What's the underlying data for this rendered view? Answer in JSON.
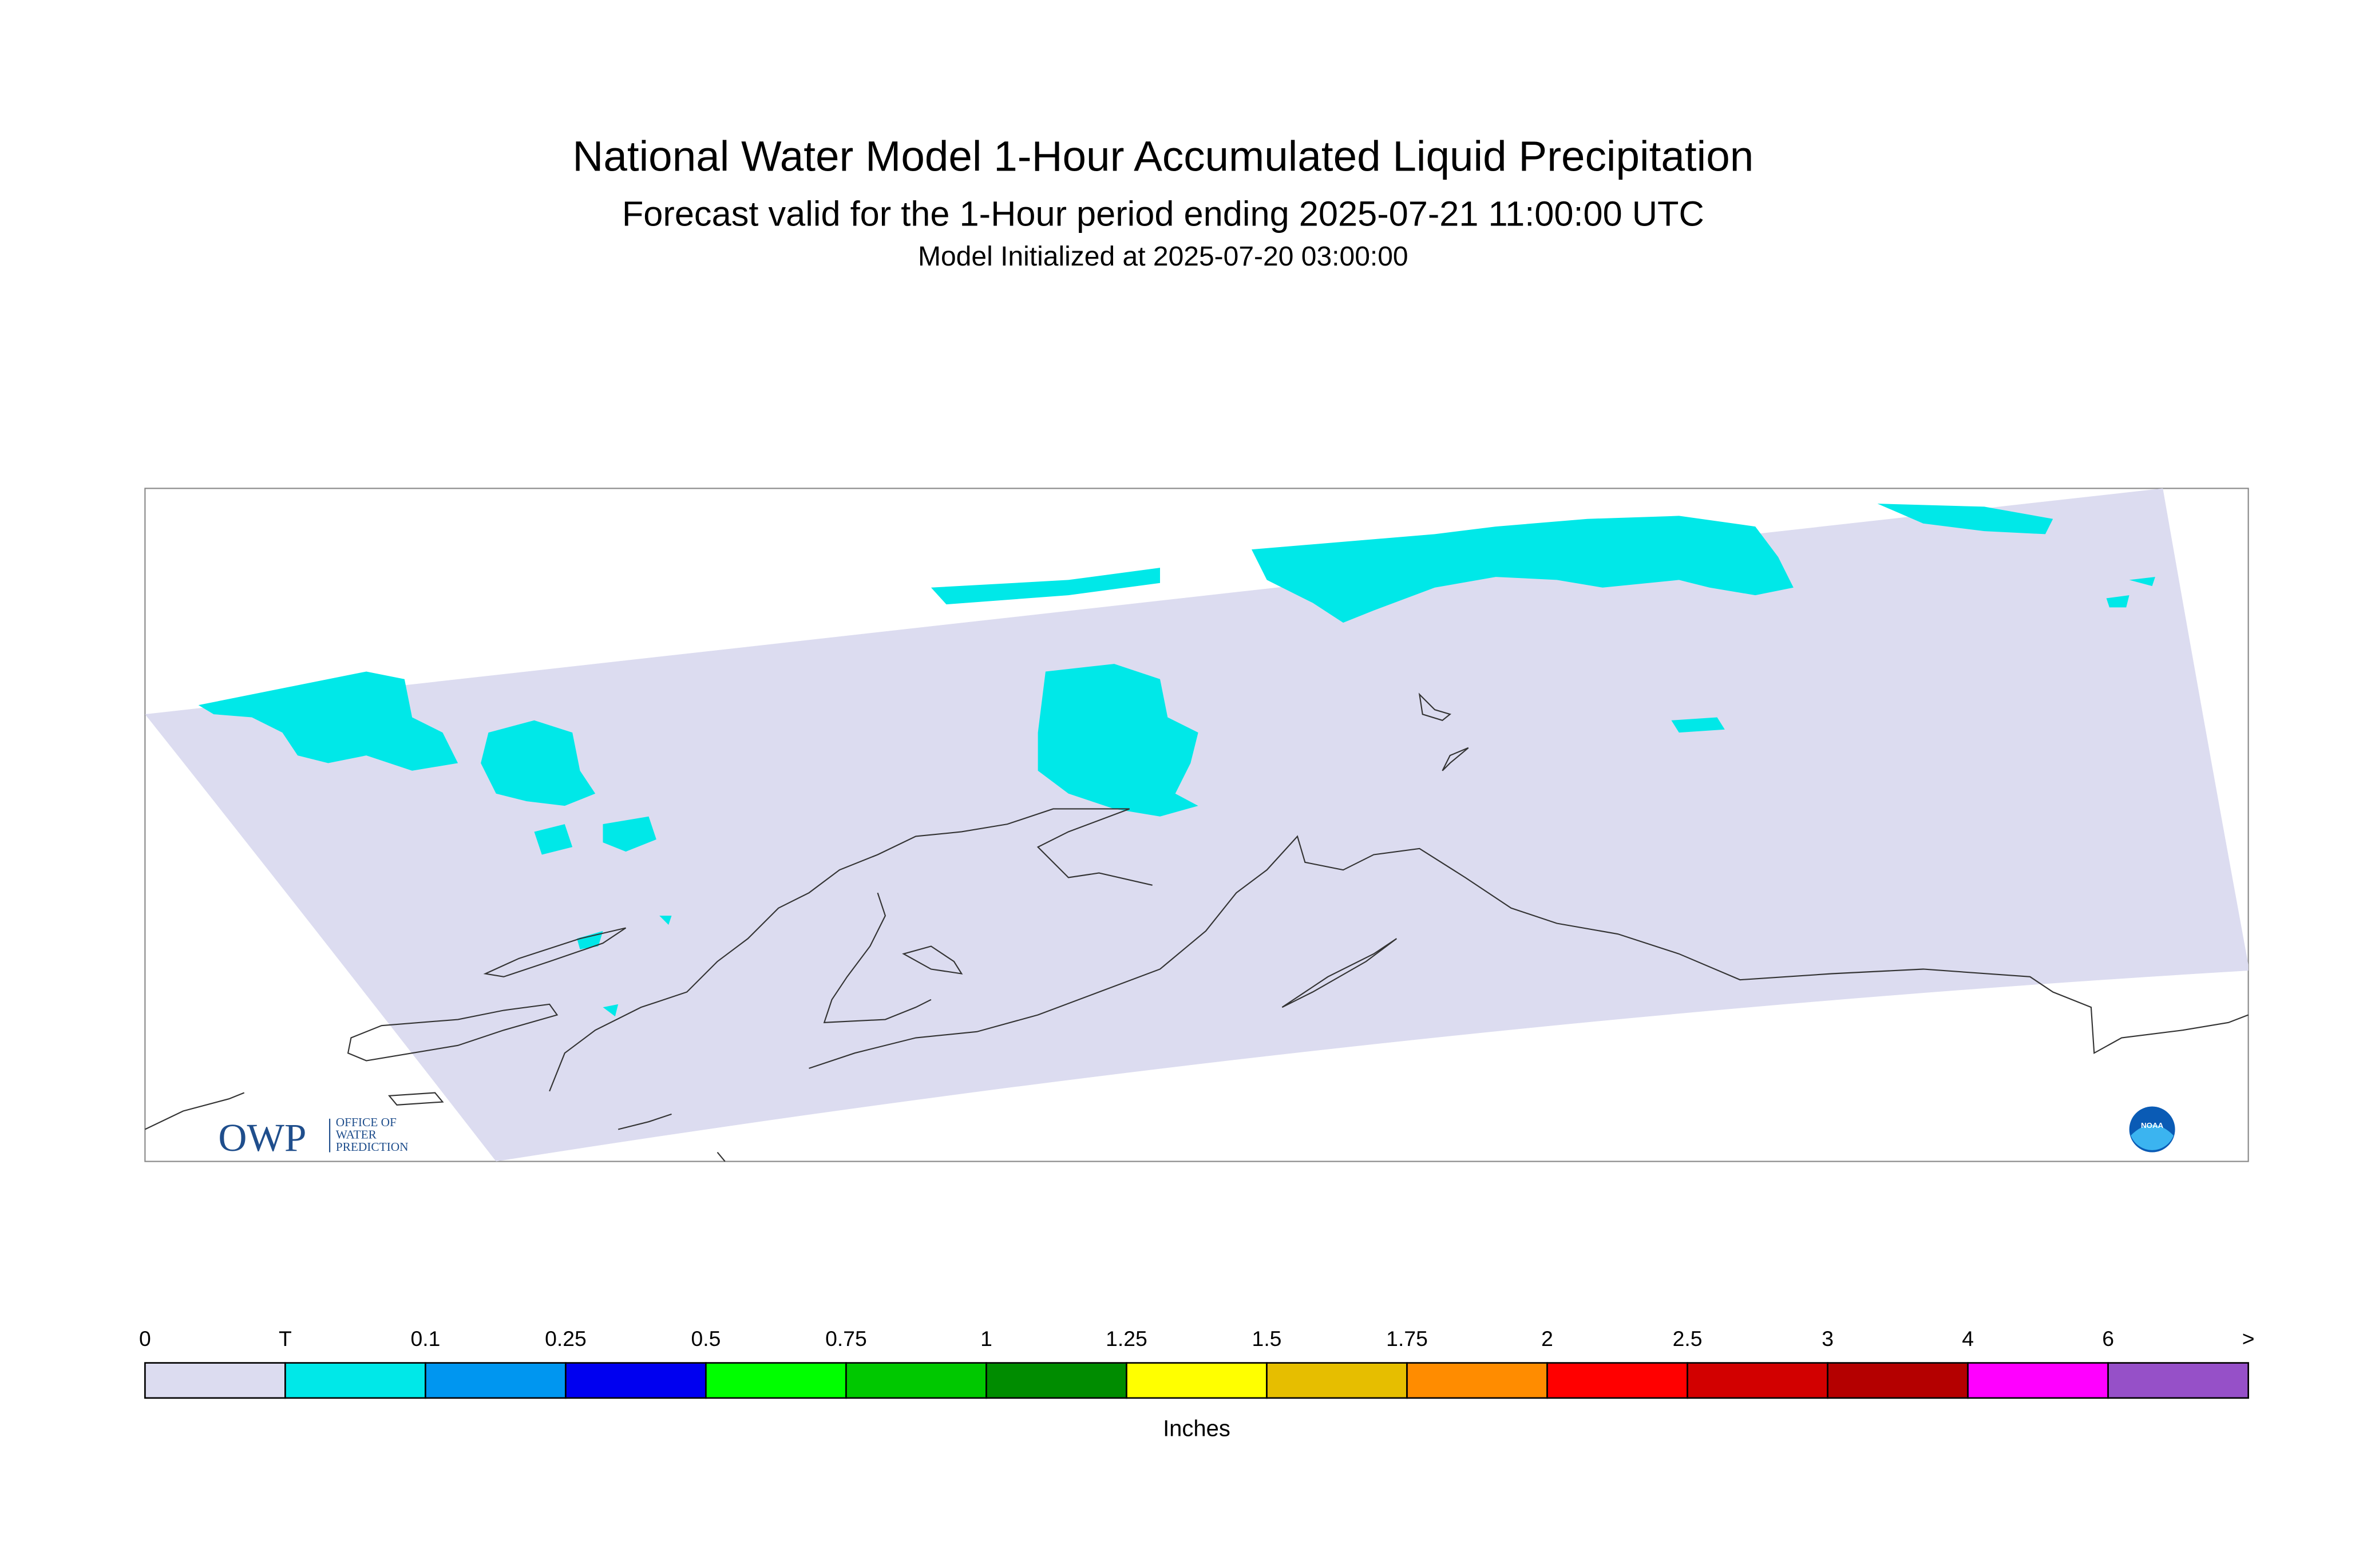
{
  "header": {
    "title": "National Water Model 1-Hour Accumulated Liquid Precipitation",
    "subtitle": "Forecast valid for the 1-Hour period ending 2025-07-21 11:00:00 UTC",
    "initialized": "Model Initialized at 2025-07-20 03:00:00"
  },
  "logos": {
    "owp": "OWP",
    "owp_line1": "OFFICE OF",
    "owp_line2": "WATER",
    "owp_line3": "PREDICTION",
    "noaa": "NOAA"
  },
  "legend": {
    "unit": "Inches",
    "labels": [
      "0",
      "T",
      "0.1",
      "0.25",
      "0.5",
      "0.75",
      "1",
      "1.25",
      "1.5",
      "1.75",
      "2",
      "2.5",
      "3",
      "4",
      "6",
      ">"
    ],
    "colors": [
      "#dcdcf0",
      "#00e8e8",
      "#0096f0",
      "#0000f0",
      "#00ff00",
      "#00c800",
      "#008c00",
      "#ffff00",
      "#e6be00",
      "#ff8c00",
      "#ff0000",
      "#d20000",
      "#b40000",
      "#ff00ff",
      "#9650c8"
    ]
  }
}
